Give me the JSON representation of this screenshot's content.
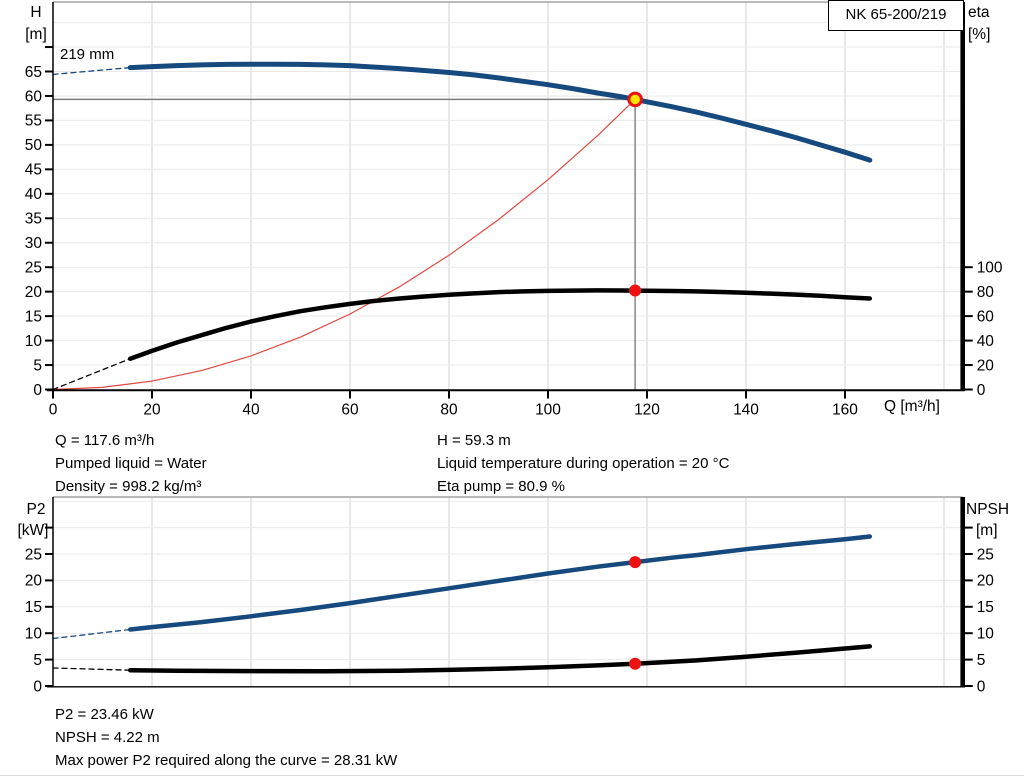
{
  "header": {
    "model": "NK 65-200/219"
  },
  "impeller_label": "219 mm",
  "axis_labels": {
    "top_left_line1": "H",
    "top_left_line2": "[m]",
    "top_right_line1": "eta",
    "top_right_line2": "[%]",
    "x_label": "Q [m³/h]",
    "bottom_left_line1": "P2",
    "bottom_left_line2": "[kW]",
    "bottom_right_line1": "NPSH",
    "bottom_right_line2": "[m]"
  },
  "info_top": {
    "col_left": [
      "Q = 117.6 m³/h",
      "Pumped liquid = Water",
      "Density = 998.2 kg/m³"
    ],
    "col_right": [
      "H = 59.3 m",
      "Liquid temperature during operation = 20 °C",
      "Eta pump = 80.9 %"
    ]
  },
  "info_bottom": [
    "P2 = 23.46 kW",
    "NPSH = 4.22 m",
    "Max power P2 required along the curve = 28.31 kW"
  ],
  "colors": {
    "curve_blue": "#16497e",
    "curve_black": "#000000",
    "system_red": "#e04840",
    "marker_red": "#ee1111",
    "marker_yellow": "#ffe600",
    "grid_v": "#d2d2d2",
    "grid_h": "#e9e9e9",
    "border_gray": "#a3a3a3",
    "duty_gray": "#7d7d7d"
  },
  "chart_data": [
    {
      "type": "line",
      "name": "qh-eta-chart",
      "title": "NK 65-200/219 QH and efficiency curves",
      "xlabel": "Q [m³/h]",
      "ylabel_left": "H [m]",
      "ylabel_right": "eta [%]",
      "xlim": [
        0,
        184
      ],
      "ylim_left": [
        0,
        79
      ],
      "x_ticks": [
        0,
        20,
        40,
        60,
        80,
        100,
        120,
        140,
        160
      ],
      "y_ticks_left": [
        0,
        5,
        10,
        15,
        20,
        25,
        30,
        35,
        40,
        45,
        50,
        55,
        60,
        65
      ],
      "y_ticks_right": [
        0,
        20,
        40,
        60,
        80,
        100
      ],
      "right_axis": {
        "label": "eta [%]",
        "scale_to_left": 0.25
      },
      "duty_point": {
        "Q": 117.6,
        "H": 59.3,
        "eta_pct": 80.9,
        "impeller": "219 mm"
      },
      "duty_guides": {
        "q": 117.6,
        "h": 59.3
      },
      "series": [
        {
          "name": "system-curve",
          "axis": "left",
          "color": "#e04840",
          "width": 1.2,
          "dash": false,
          "points": [
            [
              0,
              0
            ],
            [
              10,
              0.43
            ],
            [
              20,
              1.71
            ],
            [
              30,
              3.86
            ],
            [
              40,
              6.86
            ],
            [
              50,
              10.72
            ],
            [
              60,
              15.43
            ],
            [
              70,
              21.0
            ],
            [
              80,
              27.44
            ],
            [
              90,
              34.73
            ],
            [
              100,
              42.88
            ],
            [
              110,
              51.88
            ],
            [
              117.6,
              59.3
            ]
          ]
        },
        {
          "name": "head-curve-dashed-lead",
          "axis": "left",
          "color": "#16497e",
          "width": 1.3,
          "dash": true,
          "points": [
            [
              0,
              64.4
            ],
            [
              15.6,
              65.8
            ]
          ]
        },
        {
          "name": "eta-curve-dashed-lead",
          "axis": "right",
          "color": "#000000",
          "width": 1.3,
          "dash": true,
          "points": [
            [
              0,
              0
            ],
            [
              15.6,
              25.2
            ]
          ]
        },
        {
          "name": "eta-curve",
          "axis": "right",
          "color": "#000000",
          "width": 4.5,
          "dash": false,
          "points": [
            [
              15.6,
              25.2
            ],
            [
              20,
              31.6
            ],
            [
              25,
              38.4
            ],
            [
              30,
              44.4
            ],
            [
              35,
              50.4
            ],
            [
              40,
              55.6
            ],
            [
              45,
              60.0
            ],
            [
              50,
              64.0
            ],
            [
              55,
              67.2
            ],
            [
              60,
              70.0
            ],
            [
              65,
              72.4
            ],
            [
              70,
              74.4
            ],
            [
              75,
              76.0
            ],
            [
              80,
              77.4
            ],
            [
              85,
              78.6
            ],
            [
              90,
              79.6
            ],
            [
              95,
              80.2
            ],
            [
              100,
              80.6
            ],
            [
              105,
              80.85
            ],
            [
              110,
              81.0
            ],
            [
              115,
              80.95
            ],
            [
              117.6,
              80.9
            ],
            [
              120,
              80.8
            ],
            [
              125,
              80.55
            ],
            [
              130,
              80.2
            ],
            [
              135,
              79.7
            ],
            [
              140,
              79.1
            ],
            [
              145,
              78.4
            ],
            [
              150,
              77.6
            ],
            [
              155,
              76.6
            ],
            [
              160,
              75.5
            ],
            [
              165,
              74.4
            ]
          ]
        },
        {
          "name": "head-curve",
          "axis": "left",
          "color": "#16497e",
          "width": 5,
          "dash": false,
          "points": [
            [
              15.6,
              65.8
            ],
            [
              20,
              66.0
            ],
            [
              25,
              66.2
            ],
            [
              30,
              66.35
            ],
            [
              35,
              66.45
            ],
            [
              40,
              66.5
            ],
            [
              45,
              66.5
            ],
            [
              50,
              66.45
            ],
            [
              55,
              66.35
            ],
            [
              60,
              66.2
            ],
            [
              65,
              65.9
            ],
            [
              70,
              65.6
            ],
            [
              75,
              65.2
            ],
            [
              80,
              64.8
            ],
            [
              85,
              64.3
            ],
            [
              90,
              63.7
            ],
            [
              95,
              63.0
            ],
            [
              100,
              62.3
            ],
            [
              105,
              61.5
            ],
            [
              110,
              60.6
            ],
            [
              115,
              59.8
            ],
            [
              117.6,
              59.3
            ],
            [
              120,
              58.8
            ],
            [
              125,
              57.8
            ],
            [
              130,
              56.7
            ],
            [
              135,
              55.5
            ],
            [
              140,
              54.2
            ],
            [
              145,
              52.9
            ],
            [
              150,
              51.5
            ],
            [
              155,
              50.0
            ],
            [
              160,
              48.5
            ],
            [
              165,
              46.9
            ]
          ]
        }
      ],
      "markers": [
        {
          "type": "duty",
          "q": 117.6,
          "v": 59.3,
          "axis": "left",
          "name": "duty-point-marker"
        },
        {
          "type": "dot",
          "q": 117.6,
          "v": 80.9,
          "axis": "right",
          "name": "eta-point-marker"
        }
      ]
    },
    {
      "type": "line",
      "name": "p2-npsh-chart",
      "title": "NK 65-200/219 power and NPSH curves",
      "xlabel": "Q [m³/h]",
      "ylabel_left": "P2 [kW]",
      "ylabel_right": "NPSH [m]",
      "xlim": [
        0,
        184
      ],
      "ylim_left": [
        0,
        35.8
      ],
      "x_ticks": [],
      "y_ticks_left": [
        0,
        5,
        10,
        15,
        20,
        25
      ],
      "y_ticks_right": [
        0,
        5,
        10,
        15,
        20,
        25
      ],
      "right_axis": {
        "label": "NPSH [m]",
        "scale_to_left": 1
      },
      "duty_point": {
        "Q": 117.6,
        "P2_kW": 23.46,
        "NPSH_m": 4.22,
        "P2_max_kW": 28.31
      },
      "series": [
        {
          "name": "p2-curve-dashed-lead",
          "axis": "left",
          "color": "#16497e",
          "width": 1.3,
          "dash": true,
          "points": [
            [
              0,
              9.0
            ],
            [
              15.6,
              10.7
            ]
          ]
        },
        {
          "name": "npsh-curve-dashed-lead",
          "axis": "right",
          "color": "#000000",
          "width": 1.3,
          "dash": true,
          "points": [
            [
              0,
              3.4
            ],
            [
              15.6,
              3.0
            ]
          ]
        },
        {
          "name": "npsh-curve",
          "axis": "right",
          "color": "#000000",
          "width": 4.5,
          "dash": false,
          "points": [
            [
              15.6,
              3.0
            ],
            [
              25,
              2.9
            ],
            [
              40,
              2.82
            ],
            [
              55,
              2.8
            ],
            [
              70,
              2.9
            ],
            [
              80,
              3.05
            ],
            [
              90,
              3.25
            ],
            [
              100,
              3.55
            ],
            [
              110,
              3.9
            ],
            [
              117.6,
              4.22
            ],
            [
              125,
              4.6
            ],
            [
              130,
              4.85
            ],
            [
              140,
              5.55
            ],
            [
              150,
              6.3
            ],
            [
              160,
              7.1
            ],
            [
              165,
              7.5
            ]
          ]
        },
        {
          "name": "p2-curve",
          "axis": "left",
          "color": "#16497e",
          "width": 4.5,
          "dash": false,
          "points": [
            [
              15.6,
              10.7
            ],
            [
              20,
              11.15
            ],
            [
              30,
              12.1
            ],
            [
              40,
              13.2
            ],
            [
              50,
              14.4
            ],
            [
              60,
              15.7
            ],
            [
              70,
              17.1
            ],
            [
              80,
              18.5
            ],
            [
              90,
              19.9
            ],
            [
              100,
              21.3
            ],
            [
              110,
              22.6
            ],
            [
              117.6,
              23.46
            ],
            [
              125,
              24.3
            ],
            [
              130,
              24.8
            ],
            [
              140,
              25.9
            ],
            [
              150,
              26.9
            ],
            [
              160,
              27.8
            ],
            [
              165,
              28.31
            ]
          ]
        }
      ],
      "markers": [
        {
          "type": "dot",
          "q": 117.6,
          "v": 23.46,
          "axis": "left",
          "name": "p2-point-marker"
        },
        {
          "type": "dot",
          "q": 117.6,
          "v": 4.22,
          "axis": "right",
          "name": "npsh-point-marker"
        }
      ]
    }
  ]
}
